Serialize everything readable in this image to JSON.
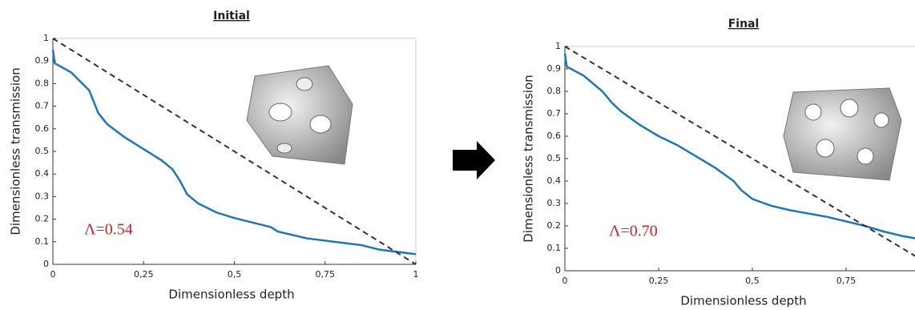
{
  "chart_data": [
    {
      "type": "line",
      "title": "Initial",
      "xlabel": "Dimensionless depth",
      "ylabel": "Dimensionless transmission",
      "annotation": "Λ=0.54",
      "xlim": [
        0,
        1
      ],
      "ylim": [
        0,
        1
      ],
      "xticks": [
        0,
        {
          "value": 0.25,
          "label": "0,25"
        },
        {
          "value": 0.5,
          "label": "0,5"
        },
        {
          "value": 0.75,
          "label": "0,75"
        },
        1
      ],
      "yticks": [
        0,
        0.1,
        0.2,
        0.3,
        0.4,
        0.5,
        0.6,
        0.7,
        0.8,
        0.9,
        1
      ],
      "series": [
        {
          "color": "#1f77b4",
          "x": [
            0,
            0.005,
            0.05,
            0.1,
            0.125,
            0.15,
            0.2,
            0.25,
            0.3,
            0.33,
            0.35,
            0.37,
            0.4,
            0.45,
            0.5,
            0.55,
            0.6,
            0.62,
            0.7,
            0.8,
            0.85,
            0.9,
            1
          ],
          "values": [
            0.95,
            0.89,
            0.85,
            0.77,
            0.67,
            0.62,
            0.56,
            0.51,
            0.46,
            0.42,
            0.37,
            0.31,
            0.27,
            0.23,
            0.205,
            0.185,
            0.165,
            0.145,
            0.115,
            0.095,
            0.085,
            0.065,
            0.045
          ]
        },
        {
          "color": "#333333",
          "dash": true,
          "x": [
            0,
            1
          ],
          "values": [
            1,
            0
          ]
        }
      ]
    },
    {
      "type": "line",
      "title": "Final",
      "xlabel": "Dimensionless depth",
      "ylabel": "Dimensionless transmission",
      "annotation": "Λ=0.70",
      "xlim": [
        0,
        1
      ],
      "ylim": [
        0,
        1
      ],
      "xticks": [
        0,
        {
          "value": 0.25,
          "label": "0,25"
        },
        {
          "value": 0.5,
          "label": "0,5"
        },
        {
          "value": 0.75,
          "label": "0,75"
        }
      ],
      "yticks": [
        0,
        0.1,
        0.2,
        0.3,
        0.4,
        0.5,
        0.6,
        0.7,
        0.8,
        0.9,
        1
      ],
      "series": [
        {
          "color": "#1f77b4",
          "x": [
            0,
            0.005,
            0.05,
            0.1,
            0.125,
            0.15,
            0.2,
            0.25,
            0.3,
            0.35,
            0.4,
            0.45,
            0.47,
            0.5,
            0.55,
            0.6,
            0.7,
            0.8,
            0.85,
            0.9,
            0.95,
            1
          ],
          "values": [
            0.97,
            0.91,
            0.87,
            0.8,
            0.75,
            0.71,
            0.65,
            0.6,
            0.56,
            0.51,
            0.46,
            0.4,
            0.36,
            0.32,
            0.29,
            0.27,
            0.24,
            0.2,
            0.175,
            0.155,
            0.14,
            0.13
          ]
        },
        {
          "color": "#333333",
          "dash": true,
          "x": [
            0,
            1
          ],
          "values": [
            1,
            0
          ]
        }
      ]
    }
  ]
}
